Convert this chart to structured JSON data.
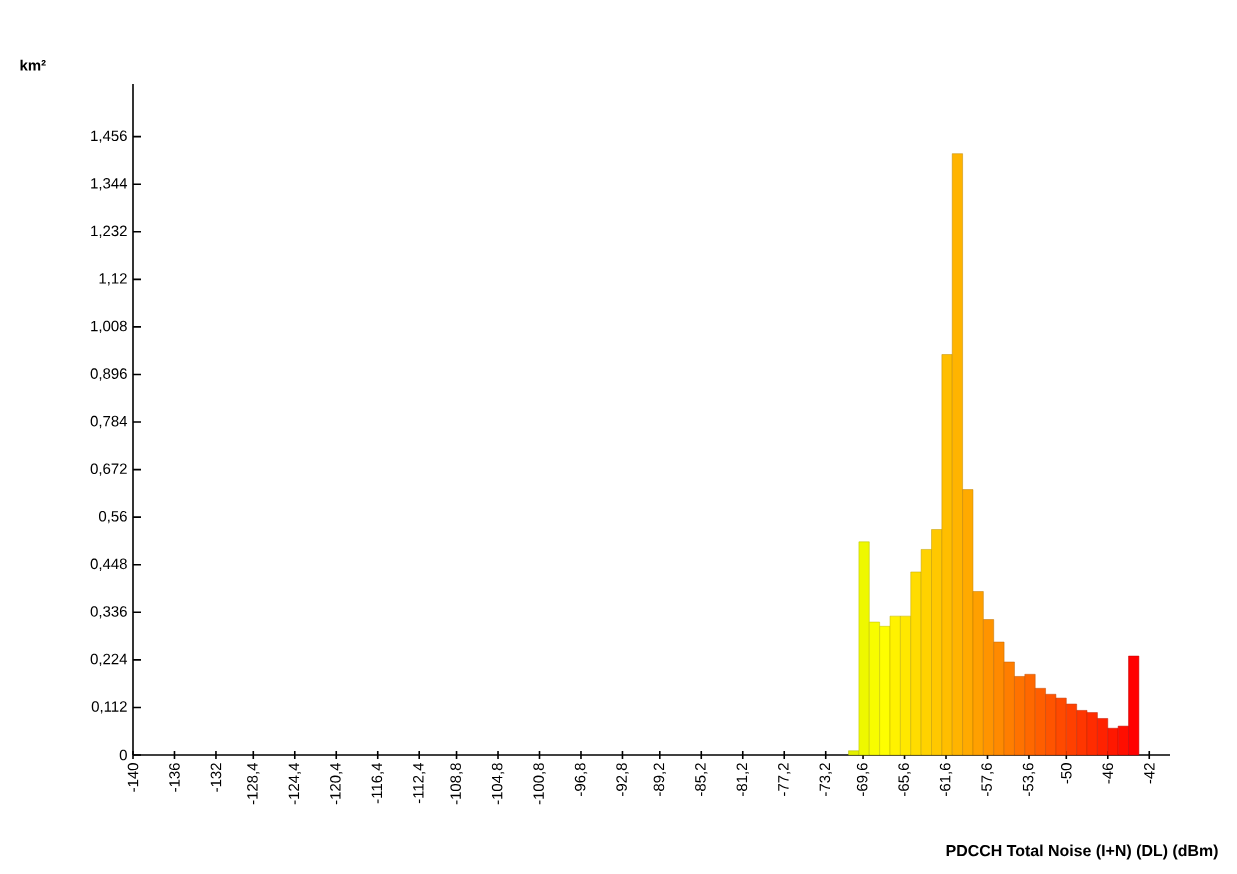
{
  "chart_data": {
    "type": "histogram",
    "ylabel": "km²",
    "xlabel": "PDCCH Total Noise (I+N) (DL) (dBm)",
    "bins": [
      -71,
      -70,
      -69,
      -68,
      -67,
      -66,
      -65,
      -64,
      -63,
      -62,
      -61,
      -60,
      -59,
      -58,
      -57,
      -56,
      -55,
      -54,
      -53,
      -52,
      -51,
      -50,
      -49,
      -48,
      -47,
      -46,
      -45,
      -44,
      -43
    ],
    "values": [
      0.01,
      0.502,
      0.313,
      0.303,
      0.327,
      0.327,
      0.431,
      0.484,
      0.531,
      0.943,
      1.416,
      0.625,
      0.385,
      0.319,
      0.266,
      0.219,
      0.185,
      0.19,
      0.157,
      0.143,
      0.134,
      0.12,
      0.105,
      0.1,
      0.086,
      0.063,
      0.068,
      0.233
    ],
    "colors": [
      "#e4f000",
      "#eef800",
      "#f8fc00",
      "#fefe00",
      "#fff200",
      "#ffe800",
      "#ffdc00",
      "#ffd200",
      "#ffc800",
      "#ffbe00",
      "#ffb400",
      "#ffaa00",
      "#ffa000",
      "#ff9400",
      "#ff8a00",
      "#ff7e00",
      "#ff7200",
      "#ff6800",
      "#ff5e00",
      "#ff5400",
      "#ff4a00",
      "#ff4000",
      "#ff3600",
      "#ff2c00",
      "#ff2200",
      "#ff1800",
      "#ff0e00",
      "#ff0000"
    ],
    "xlim": [
      -140,
      -40
    ],
    "xticks": [
      -140,
      -136,
      -132,
      {
        "value": -128.4,
        "label": "-128,4"
      },
      {
        "value": -124.4,
        "label": "-124,4"
      },
      {
        "value": -120.4,
        "label": "-120,4"
      },
      {
        "value": -116.4,
        "label": "-116,4"
      },
      {
        "value": -112.4,
        "label": "-112,4"
      },
      {
        "value": -108.8,
        "label": "-108,8"
      },
      {
        "value": -104.8,
        "label": "-104,8"
      },
      {
        "value": -100.8,
        "label": "-100,8"
      },
      {
        "value": -96.8,
        "label": "-96,8"
      },
      {
        "value": -92.8,
        "label": "-92,8"
      },
      {
        "value": -89.2,
        "label": "-89,2"
      },
      {
        "value": -85.2,
        "label": "-85,2"
      },
      {
        "value": -81.2,
        "label": "-81,2"
      },
      {
        "value": -77.2,
        "label": "-77,2"
      },
      {
        "value": -73.2,
        "label": "-73,2"
      },
      {
        "value": -69.6,
        "label": "-69,6"
      },
      {
        "value": -65.6,
        "label": "-65,6"
      },
      {
        "value": -61.6,
        "label": "-61,6"
      },
      {
        "value": -57.6,
        "label": "-57,6"
      },
      {
        "value": -53.6,
        "label": "-53,6"
      },
      -50,
      -46,
      -42
    ],
    "ylim": [
      0,
      1.58
    ],
    "yticks": [
      0,
      {
        "value": 0.112,
        "label": "0,112"
      },
      {
        "value": 0.224,
        "label": "0,224"
      },
      {
        "value": 0.336,
        "label": "0,336"
      },
      {
        "value": 0.448,
        "label": "0,448"
      },
      {
        "value": 0.56,
        "label": "0,56"
      },
      {
        "value": 0.672,
        "label": "0,672"
      },
      {
        "value": 0.784,
        "label": "0,784"
      },
      {
        "value": 0.896,
        "label": "0,896"
      },
      {
        "value": 1.008,
        "label": "1,008"
      },
      {
        "value": 1.12,
        "label": "1,12"
      },
      {
        "value": 1.232,
        "label": "1,232"
      },
      {
        "value": 1.344,
        "label": "1,344"
      },
      {
        "value": 1.456,
        "label": "1,456"
      }
    ]
  }
}
